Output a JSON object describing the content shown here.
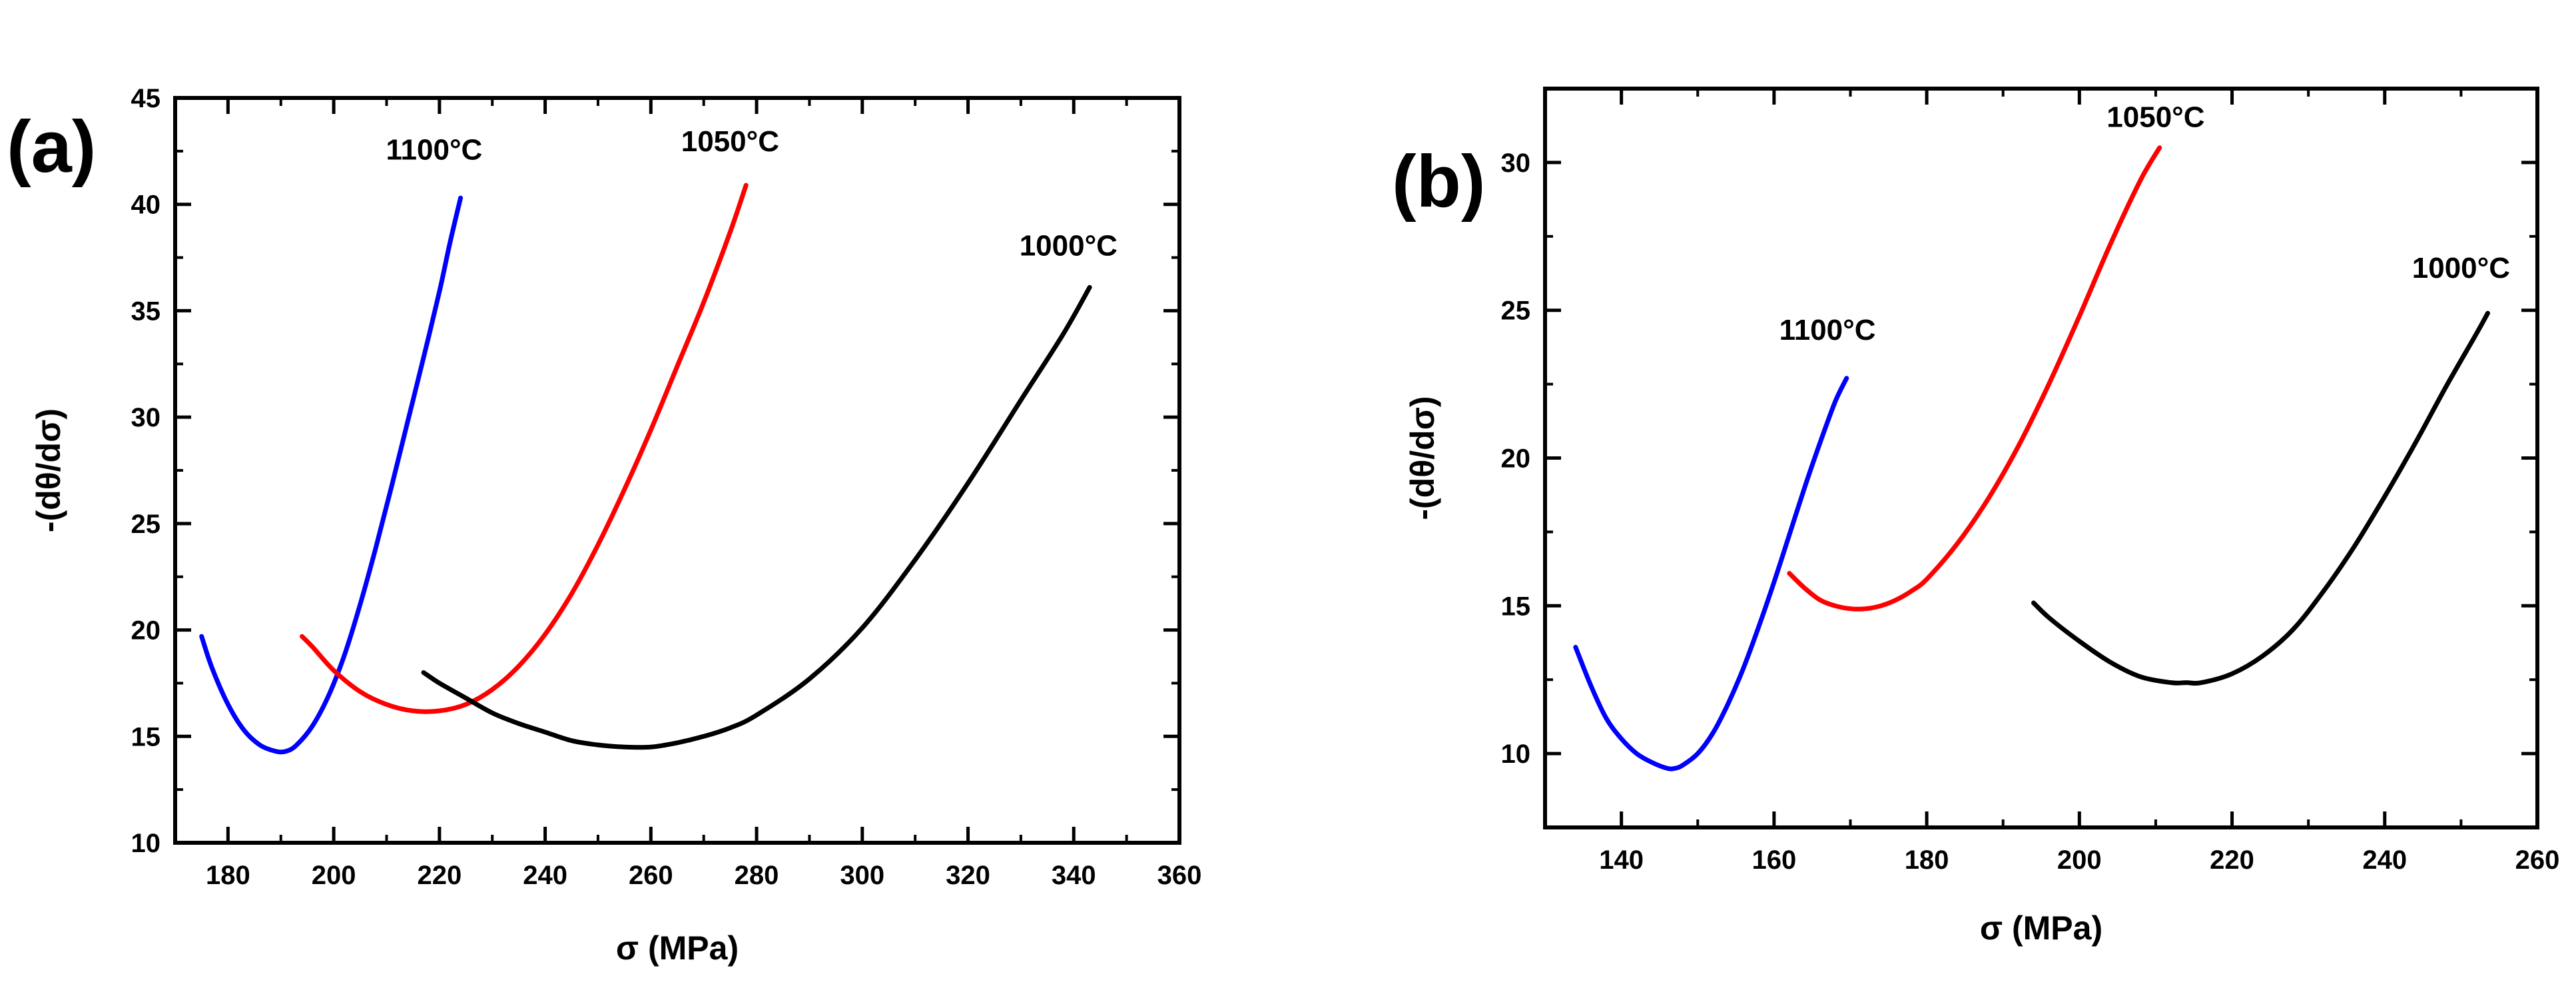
{
  "chart_data": [
    {
      "type": "line",
      "panel_label": "(a)",
      "xlabel": "σ (MPa)",
      "ylabel": "-(dθ/dσ)",
      "xlim": [
        170,
        360
      ],
      "ylim": [
        10,
        45
      ],
      "xticks": [
        180,
        200,
        220,
        240,
        260,
        280,
        300,
        320,
        340,
        360
      ],
      "yticks": [
        10,
        15,
        20,
        25,
        30,
        35,
        40,
        45
      ],
      "x_minor_step": 10,
      "y_minor_step": 2.5,
      "series": [
        {
          "name": "1100°C",
          "color": "#0000ff",
          "label_at": [
            219,
            42.1
          ],
          "x": [
            175,
            177,
            180,
            183,
            186,
            189,
            191,
            193,
            196,
            199,
            202,
            205,
            208,
            211,
            214,
            217,
            220,
            222,
            224
          ],
          "y": [
            19.7,
            18.2,
            16.5,
            15.3,
            14.6,
            14.3,
            14.3,
            14.6,
            15.5,
            16.9,
            18.8,
            21.2,
            23.9,
            26.8,
            29.8,
            32.8,
            35.9,
            38.2,
            40.3
          ]
        },
        {
          "name": "1050°C",
          "color": "#ff0000",
          "label_at": [
            275,
            42.5
          ],
          "x": [
            194,
            196,
            200,
            205,
            210,
            215,
            220,
            225,
            230,
            235,
            240,
            245,
            250,
            255,
            260,
            265,
            270,
            275,
            278
          ],
          "y": [
            19.7,
            19.2,
            18.1,
            17.1,
            16.5,
            16.2,
            16.2,
            16.5,
            17.2,
            18.3,
            19.8,
            21.7,
            24.0,
            26.6,
            29.4,
            32.4,
            35.4,
            38.7,
            40.9
          ]
        },
        {
          "name": "1000°C",
          "color": "#000000",
          "label_at": [
            339,
            37.6
          ],
          "x": [
            217,
            220,
            225,
            230,
            235,
            240,
            245,
            250,
            255,
            260,
            265,
            270,
            275,
            280,
            290,
            300,
            310,
            320,
            330,
            338,
            343
          ],
          "y": [
            18.0,
            17.5,
            16.8,
            16.1,
            15.6,
            15.2,
            14.8,
            14.6,
            14.5,
            14.5,
            14.7,
            15.0,
            15.4,
            16.0,
            17.7,
            20.1,
            23.3,
            26.9,
            30.8,
            33.9,
            36.1
          ]
        }
      ]
    },
    {
      "type": "line",
      "panel_label": "(b)",
      "xlabel": "σ (MPa)",
      "ylabel": "-(dθ/dσ)",
      "xlim": [
        130,
        260
      ],
      "ylim": [
        7.5,
        32.5
      ],
      "xticks": [
        140,
        160,
        180,
        200,
        220,
        240,
        260
      ],
      "yticks": [
        10,
        15,
        20,
        25,
        30
      ],
      "x_minor_step": 10,
      "y_minor_step": 2.5,
      "series": [
        {
          "name": "1100°C",
          "color": "#0000ff",
          "label_at": [
            167,
            24.0
          ],
          "x": [
            134,
            136,
            138,
            140,
            142,
            144,
            146,
            147,
            148,
            150,
            152,
            154,
            156,
            158,
            160,
            162,
            164,
            166,
            168,
            169.5
          ],
          "y": [
            13.6,
            12.3,
            11.2,
            10.5,
            10.0,
            9.7,
            9.5,
            9.5,
            9.6,
            10.0,
            10.7,
            11.7,
            12.9,
            14.3,
            15.8,
            17.4,
            19.0,
            20.5,
            21.9,
            22.7
          ]
        },
        {
          "name": "1050°C",
          "color": "#ff0000",
          "label_at": [
            210,
            31.2
          ],
          "x": [
            162,
            164,
            166,
            168,
            170,
            172,
            174,
            176,
            178,
            180,
            184,
            188,
            192,
            196,
            200,
            204,
            208,
            210.5
          ],
          "y": [
            16.1,
            15.6,
            15.2,
            15.0,
            14.9,
            14.9,
            15.0,
            15.2,
            15.5,
            15.9,
            17.1,
            18.6,
            20.4,
            22.5,
            24.8,
            27.2,
            29.4,
            30.5
          ]
        },
        {
          "name": "1000°C",
          "color": "#000000",
          "label_at": [
            250,
            26.1
          ],
          "x": [
            194,
            196,
            200,
            204,
            208,
            212,
            214,
            216,
            220,
            224,
            228,
            232,
            236,
            240,
            244,
            248,
            252,
            253.5
          ],
          "y": [
            15.1,
            14.6,
            13.8,
            13.1,
            12.6,
            12.4,
            12.4,
            12.4,
            12.7,
            13.3,
            14.2,
            15.5,
            17.0,
            18.7,
            20.5,
            22.4,
            24.2,
            24.9
          ]
        }
      ]
    }
  ]
}
